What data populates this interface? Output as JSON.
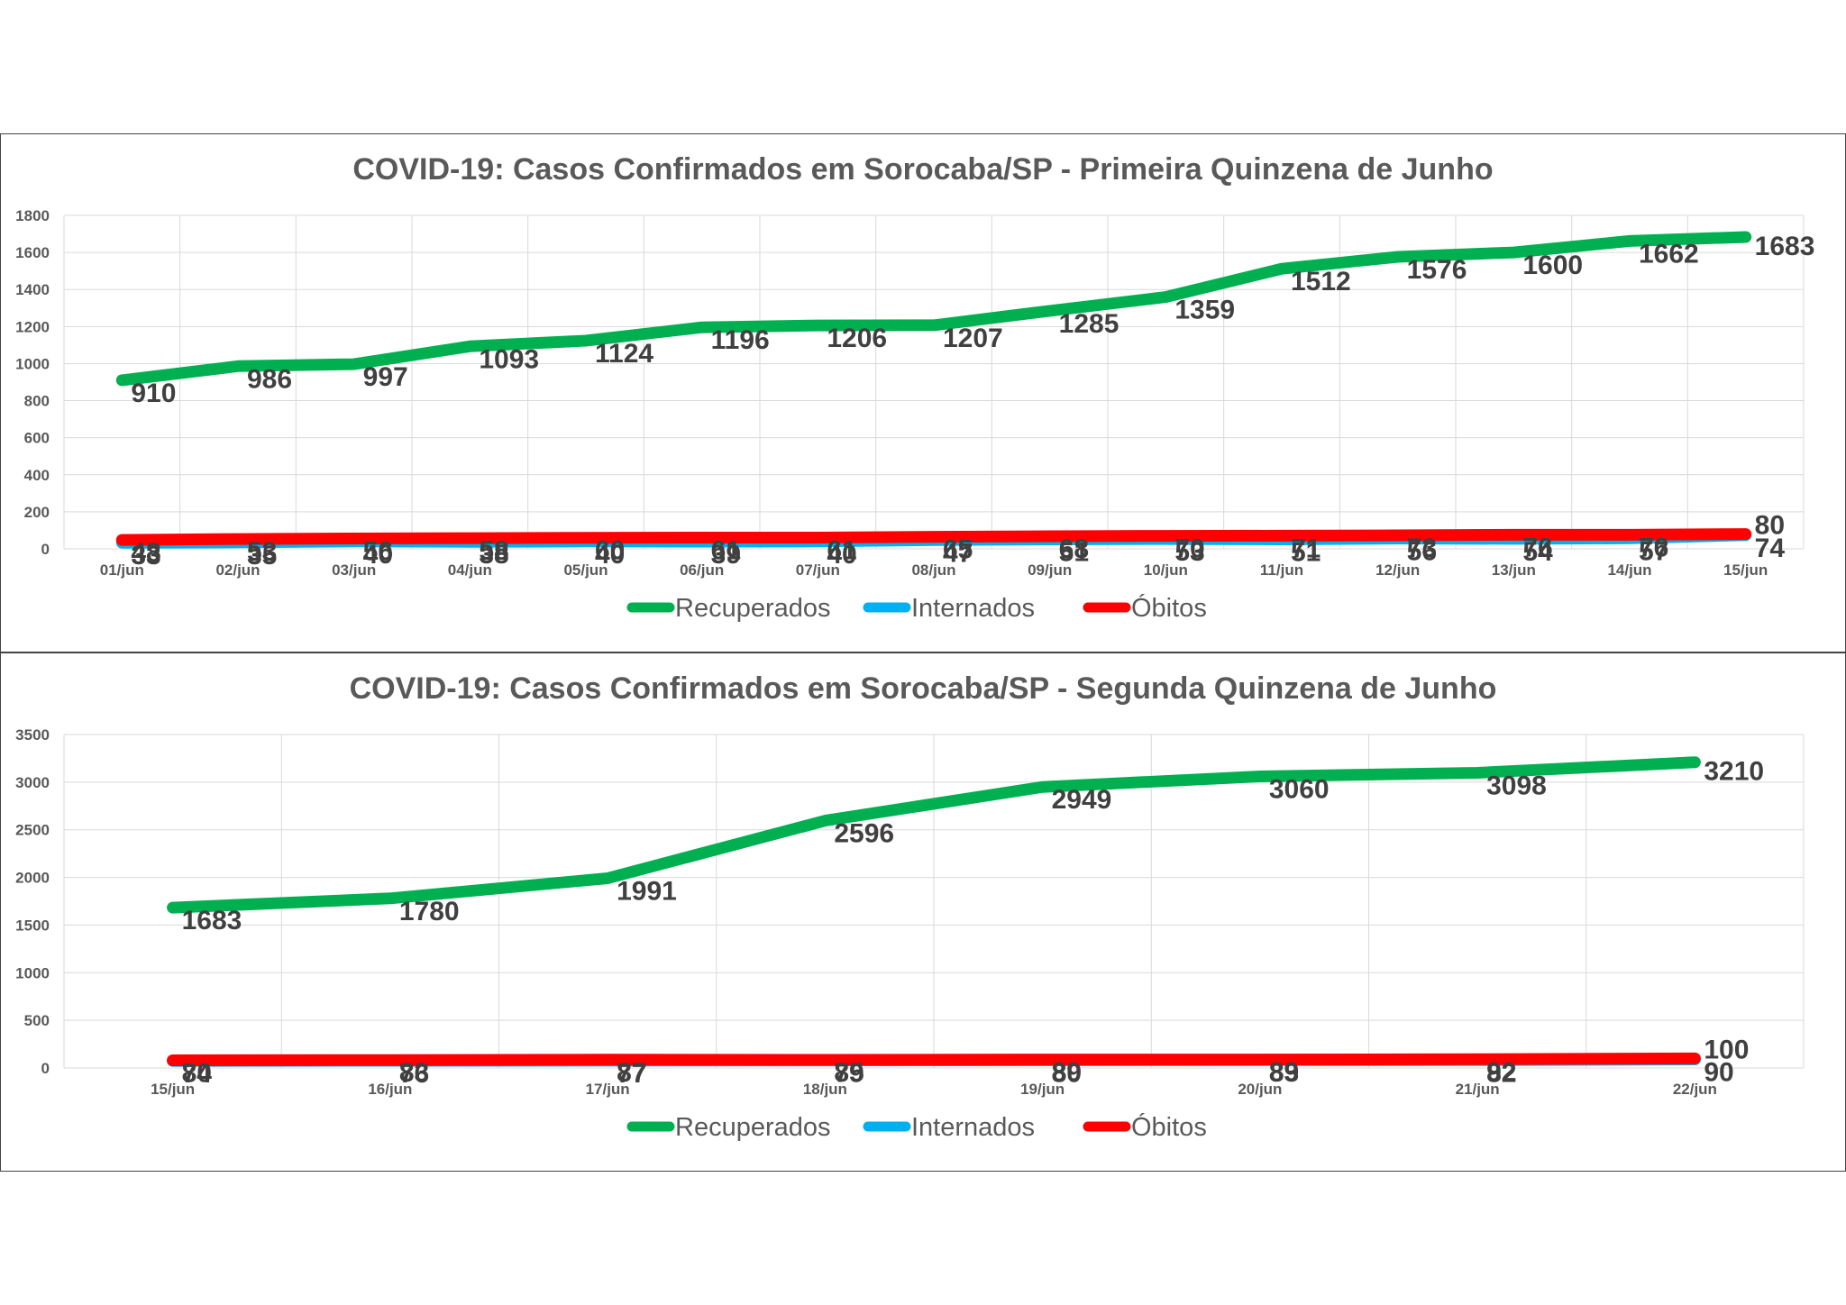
{
  "chart_data": [
    {
      "type": "line",
      "title": "COVID-19: Casos Confirmados em Sorocaba/SP - Primeira Quinzena de Junho",
      "categories": [
        "01/jun",
        "02/jun",
        "03/jun",
        "04/jun",
        "05/jun",
        "06/jun",
        "07/jun",
        "08/jun",
        "09/jun",
        "10/jun",
        "11/jun",
        "12/jun",
        "13/jun",
        "14/jun",
        "15/jun"
      ],
      "ylim": [
        0,
        1800
      ],
      "yticks": [
        0,
        200,
        400,
        600,
        800,
        1000,
        1200,
        1400,
        1600,
        1800
      ],
      "grid": true,
      "legend": "bottom",
      "series": [
        {
          "name": "Recuperados",
          "color": "#00b050",
          "values": [
            910,
            986,
            997,
            1093,
            1124,
            1196,
            1206,
            1207,
            1285,
            1359,
            1512,
            1576,
            1600,
            1662,
            1683
          ]
        },
        {
          "name": "Internados",
          "color": "#00b0f0",
          "values": [
            33,
            35,
            40,
            38,
            40,
            39,
            40,
            47,
            51,
            53,
            51,
            56,
            54,
            57,
            74
          ]
        },
        {
          "name": "Óbitos",
          "color": "#ff0000",
          "values": [
            48,
            53,
            56,
            58,
            60,
            61,
            61,
            65,
            68,
            70,
            71,
            73,
            76,
            76,
            80
          ]
        }
      ]
    },
    {
      "type": "line",
      "title": "COVID-19: Casos Confirmados em Sorocaba/SP - Segunda Quinzena de Junho",
      "categories": [
        "15/jun",
        "16/jun",
        "17/jun",
        "18/jun",
        "19/jun",
        "20/jun",
        "21/jun",
        "22/jun"
      ],
      "ylim": [
        0,
        3500
      ],
      "yticks": [
        0,
        500,
        1000,
        1500,
        2000,
        2500,
        3000,
        3500
      ],
      "grid": true,
      "legend": "bottom",
      "series": [
        {
          "name": "Recuperados",
          "color": "#00b050",
          "values": [
            1683,
            1780,
            1991,
            2596,
            2949,
            3060,
            3098,
            3210
          ]
        },
        {
          "name": "Internados",
          "color": "#00b0f0",
          "values": [
            74,
            76,
            77,
            79,
            80,
            83,
            82,
            90
          ]
        },
        {
          "name": "Óbitos",
          "color": "#ff0000",
          "values": [
            80,
            83,
            87,
            85,
            89,
            89,
            92,
            100
          ]
        }
      ]
    }
  ]
}
